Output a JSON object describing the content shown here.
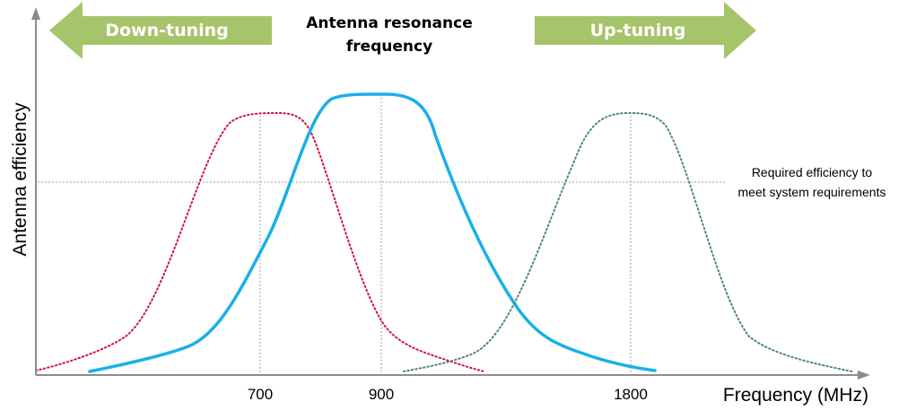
{
  "arrows": {
    "down_label": "Down-tuning",
    "up_label": "Up-tuning",
    "color": "#a6c46a"
  },
  "title": {
    "line1": "Antenna resonance",
    "line2": "frequency"
  },
  "axes": {
    "y_label": "Antenna efficiency",
    "x_label": "Frequency  (MHz)",
    "x_ticks": [
      "700",
      "900",
      "1800"
    ],
    "color": "#8c8c8c"
  },
  "threshold": {
    "line1": "Required efficiency to",
    "line2": "meet system requirements",
    "color": "#a0a0a0"
  },
  "curves": [
    {
      "name": "down-tuned",
      "style": "dotted",
      "color": "#d4143c",
      "center": "700"
    },
    {
      "name": "resonance",
      "style": "solid",
      "color": "#1ab0e8",
      "center": "900"
    },
    {
      "name": "up-tuned",
      "style": "dotted",
      "color": "#4a8a70",
      "center": "1800"
    }
  ]
}
